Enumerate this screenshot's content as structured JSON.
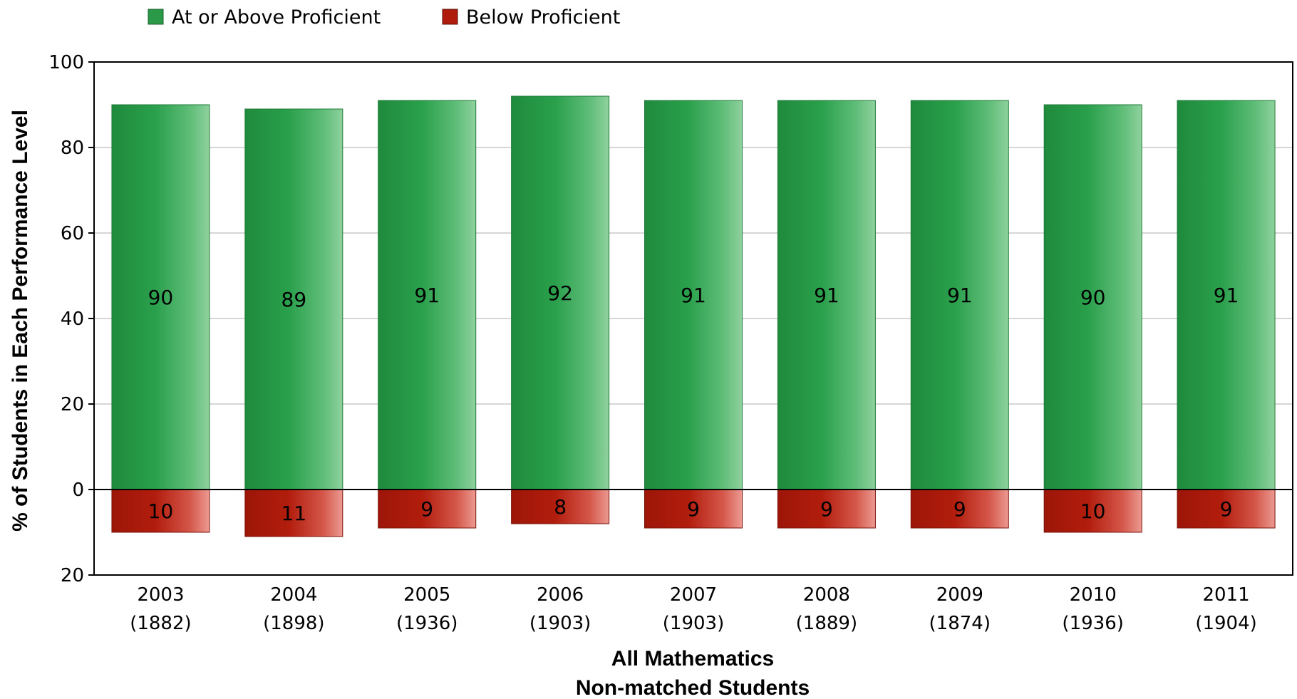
{
  "chart_data": {
    "type": "bar",
    "stacked_diverging": true,
    "categories": [
      "2003",
      "2004",
      "2005",
      "2006",
      "2007",
      "2008",
      "2009",
      "2010",
      "2011"
    ],
    "category_counts": [
      "(1882)",
      "(1898)",
      "(1936)",
      "(1903)",
      "(1903)",
      "(1889)",
      "(1874)",
      "(1936)",
      "(1904)"
    ],
    "series": [
      {
        "name": "At or Above Proficient",
        "values": [
          90,
          89,
          91,
          92,
          91,
          91,
          91,
          90,
          91
        ],
        "color": "#2a9a48",
        "direction": "up"
      },
      {
        "name": "Below Proficient",
        "values": [
          10,
          11,
          9,
          8,
          9,
          9,
          9,
          10,
          9
        ],
        "color": "#b01c0c",
        "direction": "down"
      }
    ],
    "title": "",
    "xlabel": [
      "All Mathematics",
      "Non-matched Students"
    ],
    "ylabel": "% of Students in Each Performance Level",
    "ylim": [
      -20,
      100
    ],
    "yticks": [
      100,
      80,
      60,
      40,
      20,
      0,
      -20
    ],
    "ytick_labels": [
      "100",
      "80",
      "60",
      "40",
      "20",
      "0",
      "20"
    ],
    "grid": true,
    "legend_position": "top-left"
  }
}
